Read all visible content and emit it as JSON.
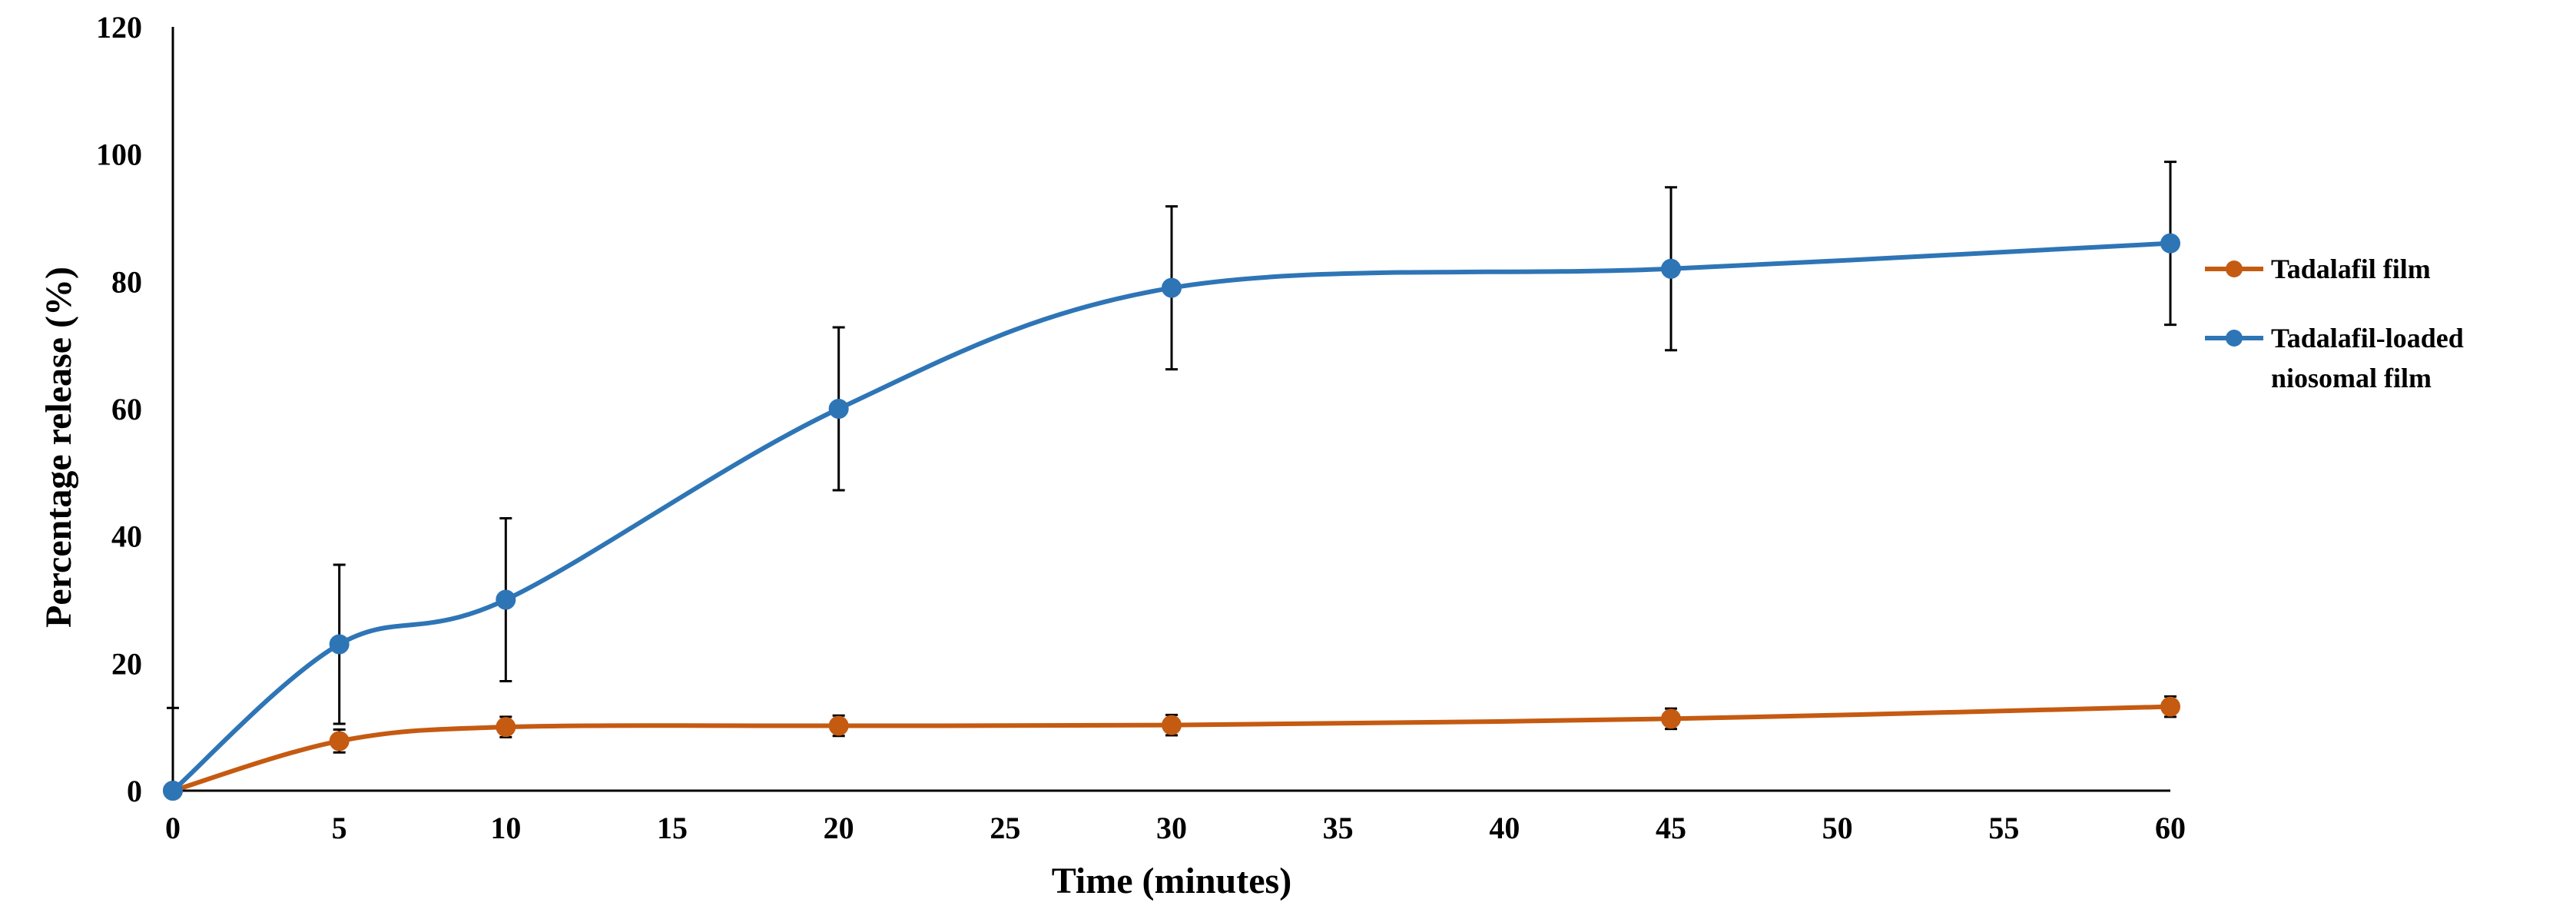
{
  "chart_data": {
    "type": "line",
    "title": "",
    "xlabel": "Time (minutes)",
    "ylabel": "Percentage release (%)",
    "xlim": [
      0,
      60
    ],
    "ylim": [
      0,
      120
    ],
    "x_ticks": [
      "0",
      "5",
      "10",
      "15",
      "20",
      "25",
      "30",
      "35",
      "40",
      "45",
      "50",
      "55",
      "60"
    ],
    "y_ticks": [
      "0",
      "20",
      "40",
      "60",
      "80",
      "100",
      "120"
    ],
    "grid": false,
    "legend_position": "right",
    "series": [
      {
        "name": "Tadalafil film",
        "color": "#C55A11",
        "x": [
          0,
          5,
          10,
          20,
          30,
          45,
          60
        ],
        "y": [
          0,
          7.8,
          10,
          10.2,
          10.3,
          11.3,
          13.2
        ],
        "err": [
          0.3,
          1.8,
          1.6,
          1.6,
          1.6,
          1.6,
          1.6
        ]
      },
      {
        "name": "Tadalafil-loaded niosomal film",
        "color": "#2E75B6",
        "x": [
          0,
          5,
          10,
          20,
          30,
          45,
          60
        ],
        "y": [
          0,
          23,
          30,
          60,
          79,
          82,
          86
        ],
        "err": [
          13,
          12.5,
          12.8,
          12.8,
          12.8,
          12.8,
          12.8
        ]
      }
    ],
    "legend": [
      {
        "lines": [
          "Tadalafil film"
        ]
      },
      {
        "lines": [
          "Tadalafil-loaded",
          "niosomal film"
        ]
      }
    ]
  }
}
